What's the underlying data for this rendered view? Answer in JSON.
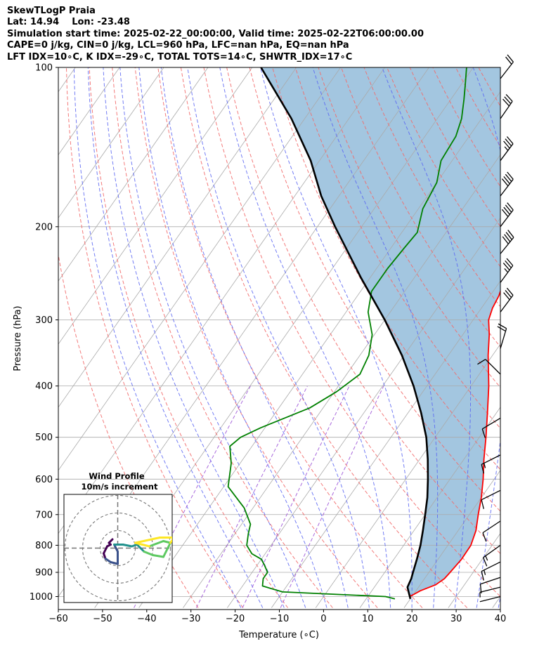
{
  "title_lines": [
    "SkewTLogP Praia",
    "Lat: 14.94    Lon: -23.48",
    "Simulation start time: 2025-02-22_00:00:00, Valid time: 2025-02-22T06:00:00.00",
    "CAPE=0 j/kg, CIN=0 j/kg, LCL=960 hPa, LFC=nan hPa, EQ=nan hPa",
    "LFT IDX=10∘C, K IDX=-29∘C, TOTAL TOTS=14∘C, SHWTR_IDX=17∘C"
  ],
  "colors": {
    "temperature": "#ff0000",
    "dewpoint": "#008000",
    "parcel": "#000000",
    "shade": "#a3c6e0",
    "dry_adiabat": "#f26b6b",
    "moist_adiabat": "#5a66f2",
    "mixing_ratio": "#9a4fd6",
    "isotherm": "#aaaaaa"
  },
  "chart_data": {
    "type": "line",
    "skew": "skew-T log-p",
    "xlabel": "Temperature (∘C)",
    "ylabel": "Pressure (hPa)",
    "xlim": [
      -60,
      40
    ],
    "ylim": [
      1050,
      100
    ],
    "y_scale": "log",
    "x_ticks": [
      "−60",
      "−50",
      "−40",
      "−30",
      "−20",
      "−10",
      "0",
      "10",
      "20",
      "30",
      "40"
    ],
    "y_ticks": [
      {
        "p": 1000,
        "label": "1000"
      },
      {
        "p": 900,
        "label": "900"
      },
      {
        "p": 800,
        "label": "800"
      },
      {
        "p": 700,
        "label": "700"
      },
      {
        "p": 600,
        "label": "600"
      },
      {
        "p": 500,
        "label": "500"
      },
      {
        "p": 400,
        "label": "400"
      },
      {
        "p": 300,
        "label": "300"
      },
      {
        "p": 200,
        "label": "200"
      },
      {
        "p": 100,
        "label": "100"
      }
    ],
    "grid": true,
    "temperature_profile": [
      [
        1000,
        19.5
      ],
      [
        975,
        21
      ],
      [
        950,
        23.5
      ],
      [
        925,
        24.5
      ],
      [
        900,
        24.8
      ],
      [
        850,
        25.3
      ],
      [
        800,
        25.2
      ],
      [
        750,
        24
      ],
      [
        700,
        22
      ],
      [
        650,
        20
      ],
      [
        600,
        17.5
      ],
      [
        550,
        14.5
      ],
      [
        500,
        11.5
      ],
      [
        450,
        8
      ],
      [
        400,
        4
      ],
      [
        350,
        -1
      ],
      [
        320,
        -4
      ],
      [
        300,
        -6.5
      ],
      [
        285,
        -7.5
      ],
      [
        270,
        -8
      ],
      [
        250,
        -9.5
      ],
      [
        230,
        -11.5
      ],
      [
        210,
        -13.5
      ],
      [
        200,
        -14.5
      ],
      [
        180,
        -17.5
      ],
      [
        165,
        -19.5
      ],
      [
        150,
        -21
      ],
      [
        140,
        -22.5
      ],
      [
        130,
        -24
      ],
      [
        120,
        -26.5
      ],
      [
        110,
        -28.5
      ],
      [
        100,
        -31.5
      ]
    ],
    "dewpoint_profile": [
      [
        1010,
        16.5
      ],
      [
        1000,
        14
      ],
      [
        980,
        -10
      ],
      [
        955,
        -15.5
      ],
      [
        925,
        -16.5
      ],
      [
        900,
        -16.5
      ],
      [
        870,
        -18.5
      ],
      [
        850,
        -20
      ],
      [
        830,
        -23
      ],
      [
        800,
        -25.5
      ],
      [
        760,
        -27
      ],
      [
        730,
        -28
      ],
      [
        680,
        -32
      ],
      [
        620,
        -39
      ],
      [
        560,
        -42
      ],
      [
        520,
        -45
      ],
      [
        500,
        -44
      ],
      [
        480,
        -41
      ],
      [
        440,
        -33
      ],
      [
        410,
        -29.5
      ],
      [
        380,
        -27
      ],
      [
        350,
        -28
      ],
      [
        320,
        -30.5
      ],
      [
        290,
        -35
      ],
      [
        265,
        -37.5
      ],
      [
        240,
        -37.5
      ],
      [
        220,
        -37
      ],
      [
        205,
        -36.5
      ],
      [
        185,
        -39
      ],
      [
        165,
        -40
      ],
      [
        150,
        -42.5
      ],
      [
        135,
        -43
      ],
      [
        125,
        -44.5
      ],
      [
        115,
        -47
      ],
      [
        108,
        -49
      ],
      [
        100,
        -51.5
      ]
    ],
    "parcel_profile": [
      [
        1010,
        20
      ],
      [
        1000,
        19.5
      ],
      [
        980,
        18.5
      ],
      [
        960,
        17.5
      ],
      [
        925,
        17
      ],
      [
        900,
        16.4
      ],
      [
        850,
        15.2
      ],
      [
        800,
        13.8
      ],
      [
        750,
        12
      ],
      [
        700,
        10
      ],
      [
        650,
        7.8
      ],
      [
        600,
        5
      ],
      [
        550,
        1.8
      ],
      [
        500,
        -2
      ],
      [
        450,
        -7
      ],
      [
        400,
        -13
      ],
      [
        350,
        -20.5
      ],
      [
        300,
        -30
      ],
      [
        250,
        -42
      ],
      [
        200,
        -56
      ],
      [
        175,
        -64
      ],
      [
        150,
        -72
      ],
      [
        125,
        -83
      ],
      [
        100,
        -98
      ]
    ],
    "wind_barbs": [
      {
        "p": 105,
        "u": -7,
        "v": -9
      },
      {
        "p": 125,
        "u": -9,
        "v": -13
      },
      {
        "p": 150,
        "u": -12,
        "v": -16
      },
      {
        "p": 175,
        "u": -13,
        "v": -17
      },
      {
        "p": 200,
        "u": -13,
        "v": -17
      },
      {
        "p": 225,
        "u": -13,
        "v": -16
      },
      {
        "p": 255,
        "u": -11,
        "v": -15
      },
      {
        "p": 290,
        "u": -9,
        "v": -12
      },
      {
        "p": 340,
        "u": -3,
        "v": -10
      },
      {
        "p": 380,
        "u": 5,
        "v": -5
      },
      {
        "p": 460,
        "u": 5,
        "v": 3
      },
      {
        "p": 540,
        "u": 8,
        "v": 4
      },
      {
        "p": 630,
        "u": 6,
        "v": 3
      },
      {
        "p": 720,
        "u": 6,
        "v": 4
      },
      {
        "p": 800,
        "u": 7,
        "v": 5
      },
      {
        "p": 860,
        "u": 8,
        "v": 4
      },
      {
        "p": 920,
        "u": 6,
        "v": 2
      },
      {
        "p": 960,
        "u": 4,
        "v": 1
      },
      {
        "p": 1000,
        "u": 2,
        "v": 0.5
      }
    ],
    "hodograph": {
      "title": "Wind Profile",
      "subtitle": "10m/s increment",
      "ring_step": 10,
      "rings": 3,
      "points": [
        [
          -3,
          5
        ],
        [
          -5,
          3
        ],
        [
          -4,
          2
        ],
        [
          -6,
          1
        ],
        [
          -8,
          -3
        ],
        [
          -7,
          -6
        ],
        [
          -4,
          -8
        ],
        [
          0,
          -9
        ],
        [
          0,
          -6
        ],
        [
          0,
          -2
        ],
        [
          -2,
          2
        ],
        [
          3,
          2
        ],
        [
          8,
          1
        ],
        [
          11,
          2
        ],
        [
          15,
          -2
        ],
        [
          20,
          -4
        ],
        [
          26,
          -5
        ],
        [
          30,
          3
        ],
        [
          26,
          4
        ],
        [
          18,
          1
        ],
        [
          14,
          2
        ],
        [
          10,
          3
        ],
        [
          24,
          6
        ],
        [
          32,
          6
        ],
        [
          30,
          3
        ]
      ]
    }
  }
}
